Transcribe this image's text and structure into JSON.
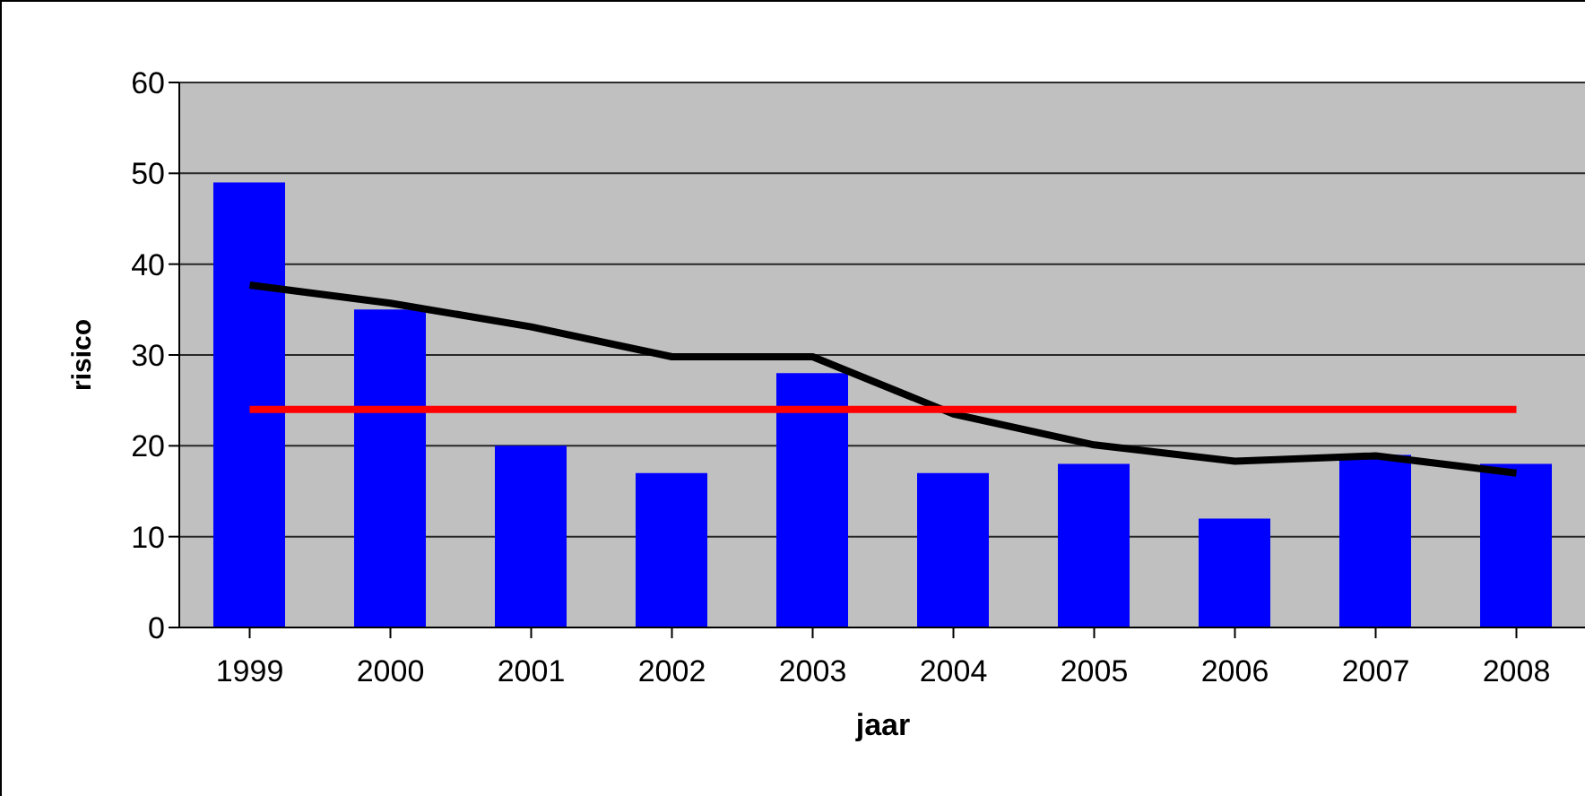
{
  "chart_data": {
    "type": "bar",
    "xlabel": "jaar",
    "ylabel": "risico",
    "categories": [
      "1999",
      "2000",
      "2001",
      "2002",
      "2003",
      "2004",
      "2005",
      "2006",
      "2007",
      "2008"
    ],
    "series": [
      {
        "color": "#0000ff",
        "values": [
          49,
          35,
          20,
          17,
          28,
          17,
          18,
          12,
          19,
          18
        ]
      },
      {
        "type": "line",
        "color": "#000000",
        "values": [
          37.7,
          35.7,
          33.1,
          29.8,
          29.8,
          23.5,
          20.1,
          18.3,
          18.9,
          17
        ]
      },
      {
        "type": "line",
        "color": "#ff0000",
        "values": [
          24,
          24,
          24,
          24,
          24,
          24,
          24,
          24,
          24,
          24
        ]
      }
    ],
    "ylim": [
      0,
      60
    ],
    "yticks": [
      0,
      10,
      20,
      30,
      40,
      50,
      60
    ],
    "grid": "y",
    "legend": false,
    "marker": "none"
  }
}
